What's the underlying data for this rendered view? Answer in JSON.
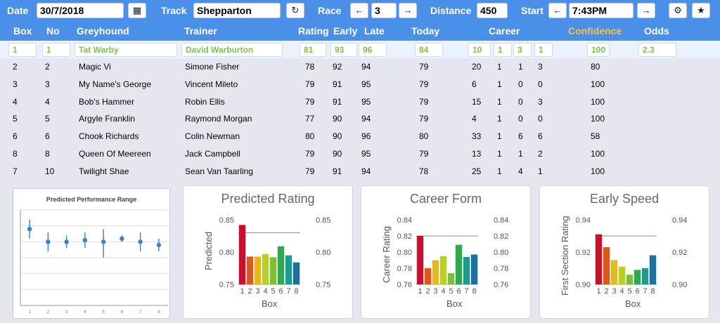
{
  "toolbar": {
    "date_label": "Date",
    "date_value": "30/7/2018",
    "track_label": "Track",
    "track_value": "Shepparton",
    "race_label": "Race",
    "race_value": "3",
    "distance_label": "Distance",
    "distance_value": "450",
    "start_label": "Start",
    "start_value": "7:43PM",
    "prev_arrow": "←",
    "next_arrow": "→",
    "refresh_icon": "↻",
    "settings_icon": "⚙",
    "star_icon": "★",
    "calendar_icon": "▦"
  },
  "columns": {
    "box": "Box",
    "no": "No",
    "greyhound": "Greyhound",
    "trainer": "Trainer",
    "rating": "Rating",
    "early": "Early",
    "late": "Late",
    "today": "Today",
    "career": "Career",
    "confidence": "Confidence",
    "odds": "Odds"
  },
  "selected": {
    "box": "1",
    "no": "1",
    "greyhound": "Tat Warby",
    "trainer": "David Warburton",
    "rating": "81",
    "early": "93",
    "late": "96",
    "today": "84",
    "career": [
      "10",
      "1",
      "3",
      "1"
    ],
    "confidence": "100",
    "odds": "2.3"
  },
  "rows": [
    {
      "box": "2",
      "no": "2",
      "greyhound": "Magic Vi",
      "trainer": "Simone Fisher",
      "rating": "78",
      "early": "92",
      "late": "94",
      "today": "79",
      "career": [
        "20",
        "1",
        "1",
        "3"
      ],
      "confidence": "80"
    },
    {
      "box": "3",
      "no": "3",
      "greyhound": "My Name's George",
      "trainer": "Vincent Mileto",
      "rating": "79",
      "early": "91",
      "late": "95",
      "today": "79",
      "career": [
        "6",
        "1",
        "0",
        "0"
      ],
      "confidence": "100"
    },
    {
      "box": "4",
      "no": "4",
      "greyhound": "Bob's Hammer",
      "trainer": "Robin Ellis",
      "rating": "79",
      "early": "91",
      "late": "95",
      "today": "79",
      "career": [
        "15",
        "1",
        "0",
        "3"
      ],
      "confidence": "100"
    },
    {
      "box": "5",
      "no": "5",
      "greyhound": "Argyle Franklin",
      "trainer": "Raymond Morgan",
      "rating": "77",
      "early": "90",
      "late": "94",
      "today": "79",
      "career": [
        "4",
        "1",
        "0",
        "0"
      ],
      "confidence": "100"
    },
    {
      "box": "6",
      "no": "6",
      "greyhound": "Chook Richards",
      "trainer": "Colin Newman",
      "rating": "80",
      "early": "90",
      "late": "96",
      "today": "80",
      "career": [
        "33",
        "1",
        "6",
        "6"
      ],
      "confidence": "58"
    },
    {
      "box": "8",
      "no": "8",
      "greyhound": "Queen Of Meereen",
      "trainer": "Jack Campbell",
      "rating": "79",
      "early": "90",
      "late": "95",
      "today": "79",
      "career": [
        "13",
        "1",
        "1",
        "2"
      ],
      "confidence": "100"
    },
    {
      "box": "7",
      "no": "10",
      "greyhound": "Twilight Shae",
      "trainer": "Sean Van Taarling",
      "rating": "79",
      "early": "91",
      "late": "94",
      "today": "78",
      "career": [
        "25",
        "1",
        "4",
        "1"
      ],
      "confidence": "100"
    }
  ],
  "bar_colors": [
    "#c8102e",
    "#d9581a",
    "#e6b820",
    "#b9cf26",
    "#7cbf34",
    "#2fa84f",
    "#1f9a8e",
    "#1f6fa0"
  ],
  "chart_data": [
    {
      "type": "scatter",
      "title": "Predicted Performance Range",
      "categories": [
        "1",
        "2",
        "3",
        "4",
        "5",
        "6",
        "7",
        "8"
      ],
      "values": [
        0.84,
        0.8,
        0.8,
        0.805,
        0.8,
        0.81,
        0.8,
        0.79
      ],
      "low": [
        0.81,
        0.77,
        0.78,
        0.78,
        0.75,
        0.8,
        0.77,
        0.77
      ],
      "high": [
        0.87,
        0.83,
        0.82,
        0.83,
        0.84,
        0.82,
        0.83,
        0.81
      ],
      "ylim": [
        0.6,
        0.9
      ],
      "grid": true
    },
    {
      "type": "bar",
      "title": "Predicted Rating",
      "categories": [
        "1",
        "2",
        "3",
        "4",
        "5",
        "6",
        "7",
        "8"
      ],
      "values": [
        0.842,
        0.793,
        0.793,
        0.797,
        0.792,
        0.809,
        0.795,
        0.784
      ],
      "xlabel": "Box",
      "ylabel": "Predicted",
      "ylim": [
        0.75,
        0.85
      ],
      "yticks": [
        "0.75",
        "0.80",
        "0.85"
      ],
      "reference_line": 0.83
    },
    {
      "type": "bar",
      "title": "Career Form",
      "categories": [
        "1",
        "2",
        "3",
        "4",
        "5",
        "6",
        "7",
        "8"
      ],
      "values": [
        0.82,
        0.78,
        0.79,
        0.795,
        0.774,
        0.809,
        0.794,
        0.797
      ],
      "xlabel": "Box",
      "ylabel": "Career Rating",
      "ylim": [
        0.76,
        0.84
      ],
      "yticks": [
        "0.76",
        "0.78",
        "0.80",
        "0.82",
        "0.84"
      ],
      "reference_line": 0.82
    },
    {
      "type": "bar",
      "title": "Early Speed",
      "categories": [
        "1",
        "2",
        "3",
        "4",
        "5",
        "6",
        "7",
        "8"
      ],
      "values": [
        0.931,
        0.923,
        0.915,
        0.911,
        0.906,
        0.909,
        0.91,
        0.918
      ],
      "xlabel": "Box",
      "ylabel": "First Section Rating",
      "ylim": [
        0.9,
        0.94
      ],
      "yticks": [
        "0.90",
        "0.92",
        "0.94"
      ],
      "reference_line": 0.93
    }
  ]
}
